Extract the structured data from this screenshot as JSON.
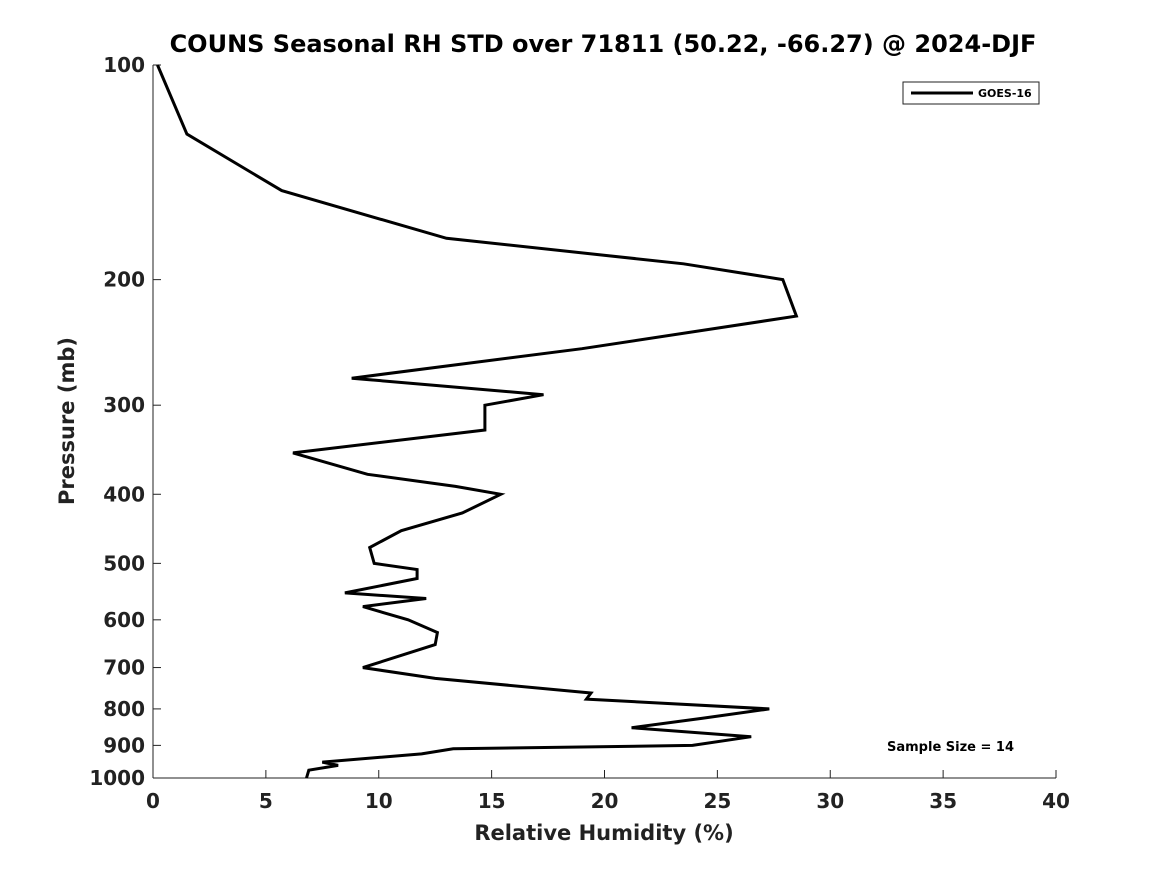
{
  "chart_data": {
    "type": "line",
    "title": "COUNS Seasonal RH STD over 71811 (50.22, -66.27) @ 2024-DJF",
    "xlabel": "Relative Humidity (%)",
    "ylabel": "Pressure (mb)",
    "xlim": [
      0,
      40
    ],
    "ylim": [
      100,
      1000
    ],
    "yscale": "log",
    "yreversed": true,
    "xticks": [
      0,
      5,
      10,
      15,
      20,
      25,
      30,
      35,
      40
    ],
    "xtick_labels": [
      "0",
      "5",
      "10",
      "15",
      "20",
      "25",
      "30",
      "35",
      "40"
    ],
    "yticks": [
      100,
      200,
      300,
      400,
      500,
      600,
      700,
      800,
      900,
      1000
    ],
    "ytick_labels": [
      "100",
      "200",
      "300",
      "400",
      "500",
      "600",
      "700",
      "800",
      "900",
      "1000"
    ],
    "legend": {
      "entries": [
        "GOES-16"
      ],
      "location": "top-right"
    },
    "annotation": "Sample Size = 14",
    "series": [
      {
        "name": "GOES-16",
        "color": "#000000",
        "x": [
          0.2,
          1.5,
          5.7,
          13.0,
          23.5,
          27.9,
          28.5,
          19.0,
          8.8,
          17.3,
          14.7,
          14.7,
          6.2,
          9.5,
          13.4,
          15.4,
          13.7,
          11.0,
          9.6,
          9.8,
          11.7,
          11.7,
          8.5,
          12.1,
          9.3,
          11.3,
          12.6,
          12.5,
          9.3,
          12.5,
          19.4,
          19.2,
          27.3,
          24.3,
          21.2,
          26.5,
          23.9,
          13.3,
          11.9,
          7.5,
          8.2,
          6.9,
          6.8
        ],
        "y": [
          100,
          125,
          150,
          175,
          190,
          200,
          225,
          250,
          275,
          290,
          300,
          325,
          350,
          375,
          390,
          400,
          425,
          450,
          475,
          500,
          510,
          525,
          550,
          560,
          575,
          600,
          625,
          650,
          700,
          725,
          760,
          775,
          800,
          825,
          850,
          875,
          900,
          910,
          925,
          950,
          960,
          975,
          1000
        ]
      }
    ]
  }
}
